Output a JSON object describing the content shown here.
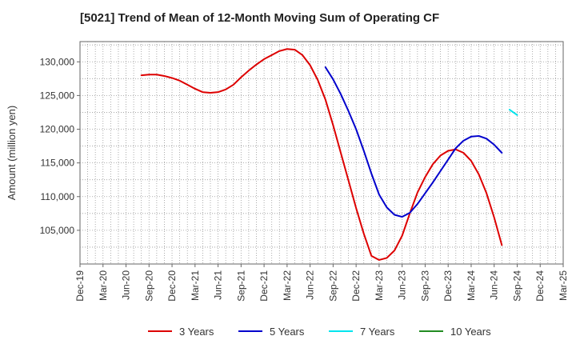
{
  "chart_data": {
    "type": "line",
    "title": "[5021]  Trend of Mean of 12-Month Moving Sum of Operating CF",
    "xlabel": "",
    "ylabel": "Amount (million yen)",
    "ylim": [
      100000,
      133000
    ],
    "yticks": [
      105000,
      110000,
      115000,
      120000,
      125000,
      130000
    ],
    "ytick_labels": [
      "105,000",
      "110,000",
      "115,000",
      "120,000",
      "125,000",
      "130,000"
    ],
    "xtick_labels": [
      "Dec-19",
      "Mar-20",
      "Jun-20",
      "Sep-20",
      "Dec-20",
      "Mar-21",
      "Jun-21",
      "Sep-21",
      "Dec-21",
      "Mar-22",
      "Jun-22",
      "Sep-22",
      "Dec-22",
      "Mar-23",
      "Jun-23",
      "Sep-23",
      "Dec-23",
      "Mar-24",
      "Jun-24",
      "Sep-24",
      "Dec-24",
      "Mar-25"
    ],
    "months": [
      "Dec-19",
      "Jan-20",
      "Feb-20",
      "Mar-20",
      "Apr-20",
      "May-20",
      "Jun-20",
      "Jul-20",
      "Aug-20",
      "Sep-20",
      "Oct-20",
      "Nov-20",
      "Dec-20",
      "Jan-21",
      "Feb-21",
      "Mar-21",
      "Apr-21",
      "May-21",
      "Jun-21",
      "Jul-21",
      "Aug-21",
      "Sep-21",
      "Oct-21",
      "Nov-21",
      "Dec-21",
      "Jan-22",
      "Feb-22",
      "Mar-22",
      "Apr-22",
      "May-22",
      "Jun-22",
      "Jul-22",
      "Aug-22",
      "Sep-22",
      "Oct-22",
      "Nov-22",
      "Dec-22",
      "Jan-23",
      "Feb-23",
      "Mar-23",
      "Apr-23",
      "May-23",
      "Jun-23",
      "Jul-23",
      "Aug-23",
      "Sep-23",
      "Oct-23",
      "Nov-23",
      "Dec-23",
      "Jan-24",
      "Feb-24",
      "Mar-24",
      "Apr-24",
      "May-24",
      "Jun-24",
      "Jul-24",
      "Aug-24",
      "Sep-24",
      "Oct-24",
      "Nov-24",
      "Dec-24",
      "Jan-25",
      "Feb-25",
      "Mar-25"
    ],
    "series": [
      {
        "name": "3 Years",
        "color": "#dd0000",
        "start_month": "Aug-20",
        "values": [
          128000,
          128100,
          128100,
          127900,
          127600,
          127200,
          126600,
          126000,
          125500,
          125400,
          125500,
          125900,
          126600,
          127700,
          128700,
          129600,
          130400,
          131000,
          131600,
          131900,
          131800,
          131000,
          129500,
          127300,
          124400,
          120600,
          116500,
          112400,
          108300,
          104500,
          101200,
          100600,
          100900,
          102000,
          104200,
          107500,
          110600,
          112900,
          114800,
          116100,
          116800,
          117000,
          116500,
          115300,
          113300,
          110500,
          106900,
          102800
        ]
      },
      {
        "name": "5 Years",
        "color": "#0000cc",
        "start_month": "Aug-22",
        "values": [
          129200,
          127400,
          125200,
          122700,
          120000,
          116800,
          113400,
          110300,
          108400,
          107300,
          107000,
          107600,
          108900,
          110500,
          112100,
          113800,
          115500,
          117200,
          118300,
          118900,
          119000,
          118600,
          117700,
          116500
        ]
      },
      {
        "name": "7 Years",
        "color": "#00e5ee",
        "start_month": "Aug-24",
        "values": [
          122900,
          122100
        ]
      },
      {
        "name": "10 Years",
        "color": "#228b22",
        "start_month": "",
        "values": []
      }
    ],
    "legend_position": "bottom",
    "grid": true
  }
}
